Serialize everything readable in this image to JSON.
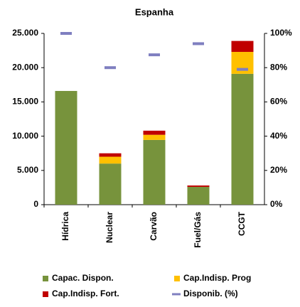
{
  "chart_data": {
    "type": "bar",
    "stacked": true,
    "title": "Espanha",
    "categories": [
      "Hídrica",
      "Nuclear",
      "Carvão",
      "Fuel/Gás",
      "CCGT"
    ],
    "series": [
      {
        "name": "Capac. Dispon.",
        "color": "#77933c",
        "values": [
          16600,
          6000,
          9450,
          2600,
          19100
        ]
      },
      {
        "name": "Cap.Indisp. Prog",
        "color": "#ffc000",
        "values": [
          0,
          1000,
          750,
          0,
          3200
        ]
      },
      {
        "name": "Cap.Indisp. Fort.",
        "color": "#c00000",
        "values": [
          0,
          500,
          600,
          200,
          1600
        ]
      },
      {
        "name": "Disponib. (%)",
        "color": "#7f7fc0",
        "axis": "y2",
        "values": [
          100,
          80,
          87.5,
          94,
          79
        ]
      }
    ],
    "ylim": [
      0,
      25000
    ],
    "yticks": [
      0,
      {
        "value": 5000,
        "label": "5.000"
      },
      {
        "value": 10000,
        "label": "10.000"
      },
      {
        "value": 15000,
        "label": "15.000"
      },
      {
        "value": 20000,
        "label": "20.000"
      },
      {
        "value": 25000,
        "label": "25.000"
      }
    ],
    "y2lim": [
      0,
      100
    ],
    "y2ticks": [
      {
        "value": 0,
        "label": "0%"
      },
      {
        "value": 20,
        "label": "20%"
      },
      {
        "value": 40,
        "label": "40%"
      },
      {
        "value": 60,
        "label": "60%"
      },
      {
        "value": 80,
        "label": "80%"
      },
      {
        "value": 100,
        "label": "100%"
      }
    ],
    "grid": false
  }
}
